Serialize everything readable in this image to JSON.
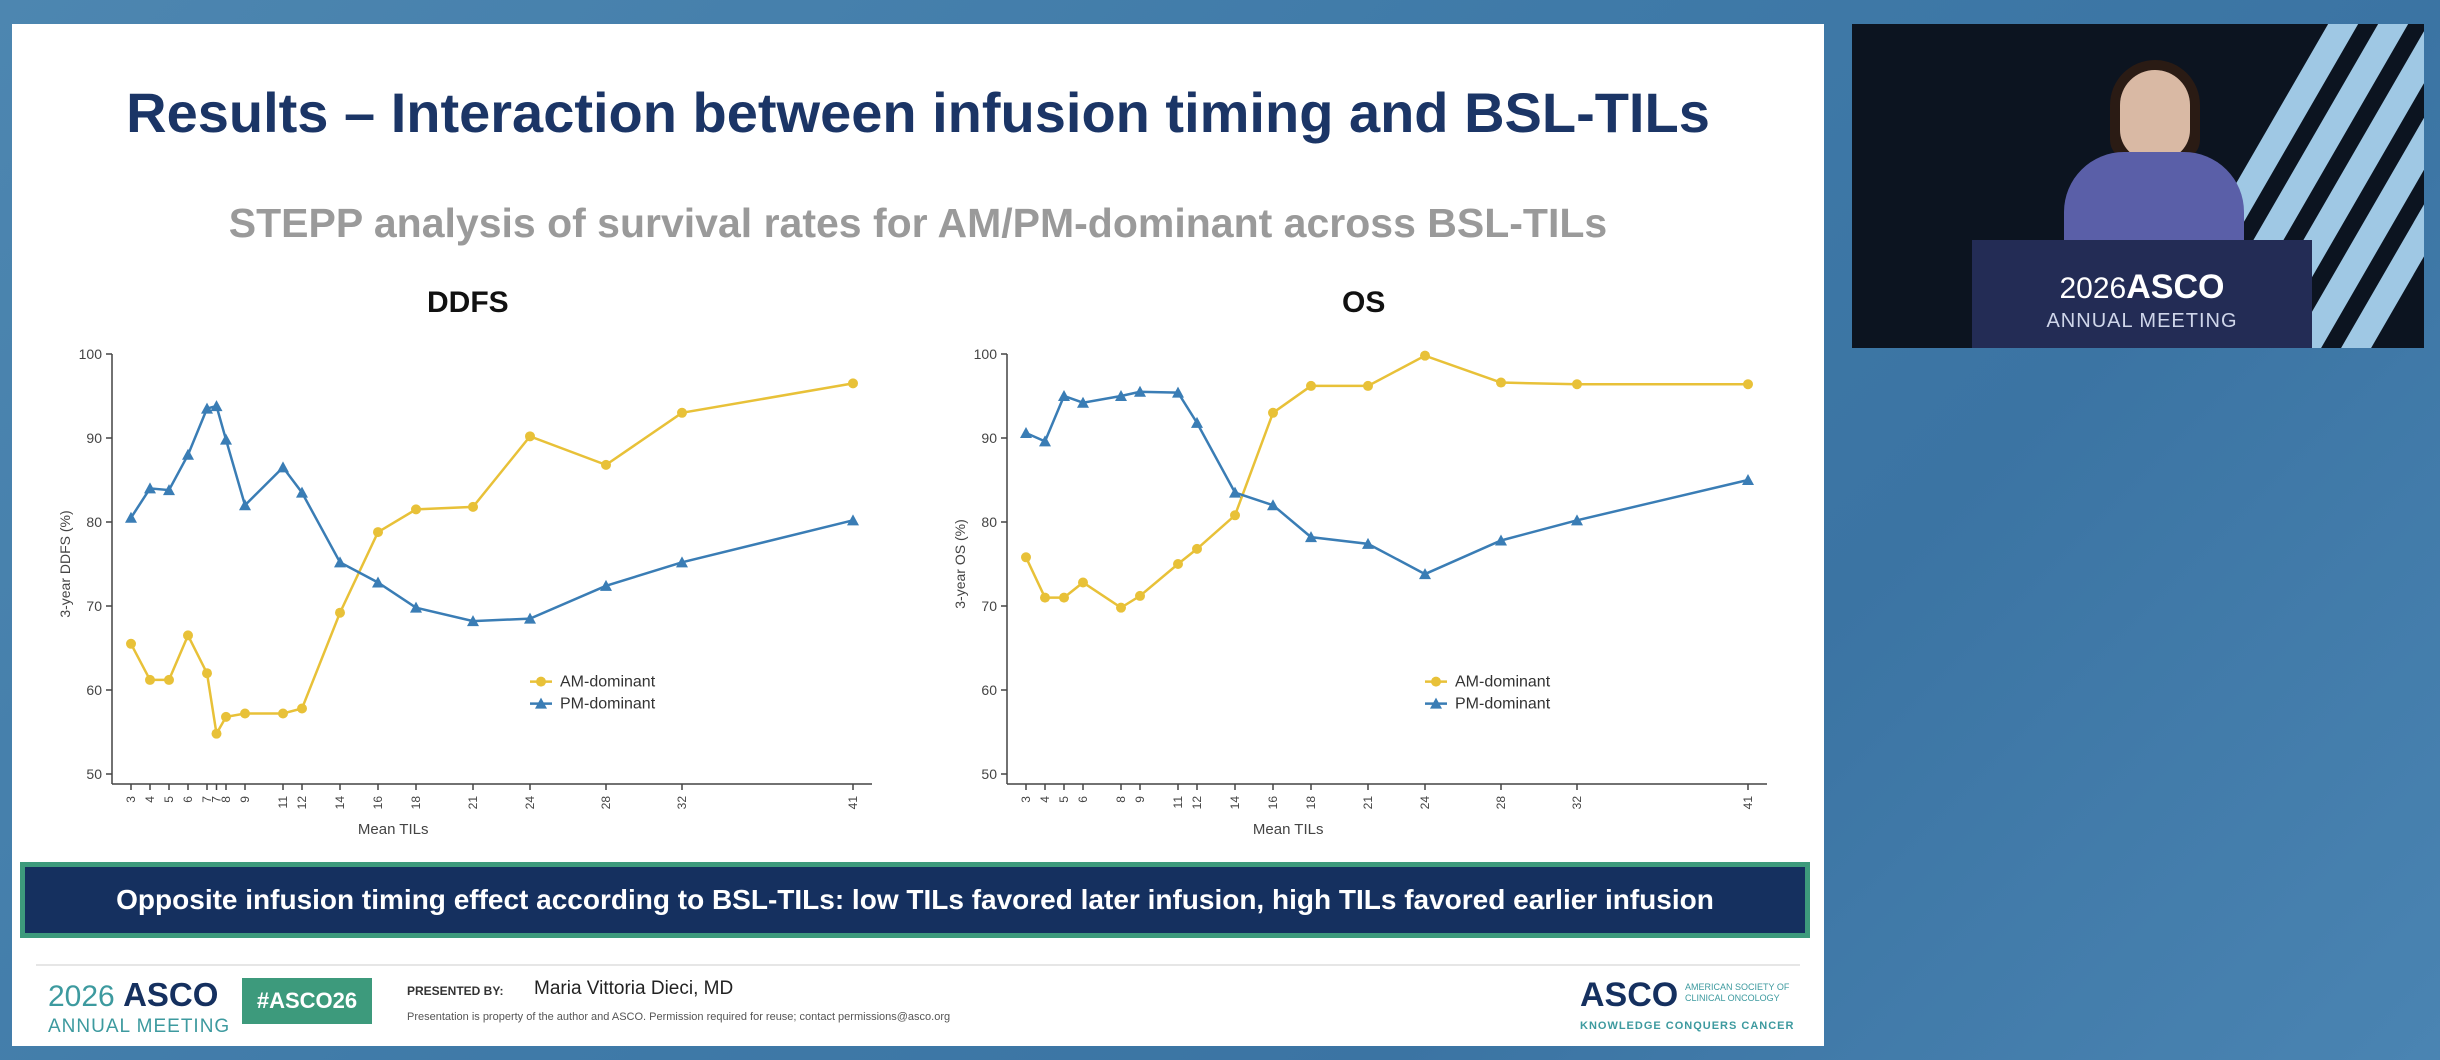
{
  "slide": {
    "title": "Results – Interaction between infusion timing and BSL-TILs",
    "subtitle": "STEPP analysis of survival rates for AM/PM-dominant across BSL-TILs",
    "callout": "Opposite infusion timing effect according to BSL-TILs: low TILs favored later infusion, high TILs favored earlier infusion"
  },
  "footer": {
    "logo_year": "2026",
    "logo_name": "ASCO",
    "logo_sub": "ANNUAL MEETING",
    "hashtag": "#ASCO26",
    "presented_by_label": "PRESENTED BY:",
    "presenter": "Maria Vittoria Dieci, MD",
    "disclaimer": "Presentation is property of the author and ASCO. Permission required for reuse; contact permissions@asco.org",
    "asco_logo": "ASCO",
    "asco_society": "AMERICAN SOCIETY OF CLINICAL ONCOLOGY",
    "asco_tagline": "KNOWLEDGE CONQUERS CANCER"
  },
  "video": {
    "podium_year": "2026",
    "podium_name": "ASCO",
    "podium_sub": "ANNUAL MEETING"
  },
  "colors": {
    "am": "#e8c138",
    "pm": "#3a7db5",
    "title": "#1b3566",
    "accent": "#3d9a7c"
  },
  "chart_data": [
    {
      "type": "line",
      "title": "DDFS",
      "xlabel": "Mean TILs",
      "ylabel": "3-year DDFS (%)",
      "ylim": [
        50,
        100
      ],
      "yticks": [
        50,
        60,
        70,
        80,
        90,
        100
      ],
      "xlim": [
        2,
        42
      ],
      "xticks": [
        3,
        4,
        5,
        6,
        7,
        7.5,
        8,
        9,
        11,
        12,
        14,
        16,
        18,
        21,
        24,
        28,
        32,
        41
      ],
      "xtick_labels": [
        "3",
        "4",
        "5",
        "6",
        "7",
        "7",
        "8",
        "9",
        "11",
        "12",
        "14",
        "16",
        "18",
        "21",
        "24",
        "28",
        "32",
        "41"
      ],
      "legend": "bottom-right",
      "series": [
        {
          "name": "AM-dominant",
          "marker": "circle",
          "x": [
            3,
            4,
            5,
            6,
            7,
            7.5,
            8,
            9,
            11,
            12,
            14,
            16,
            18,
            21,
            24,
            28,
            32,
            41
          ],
          "y": [
            65.5,
            61.2,
            61.2,
            66.5,
            62,
            54.8,
            56.8,
            57.2,
            57.2,
            57.8,
            69.2,
            78.8,
            81.5,
            81.8,
            90.2,
            86.8,
            93,
            96.5
          ]
        },
        {
          "name": "PM-dominant",
          "marker": "triangle",
          "x": [
            3,
            4,
            5,
            6,
            7,
            7.5,
            8,
            9,
            11,
            12,
            14,
            16,
            18,
            21,
            24,
            28,
            32,
            41
          ],
          "y": [
            80.5,
            84,
            83.8,
            88,
            93.5,
            93.8,
            89.8,
            82,
            86.5,
            83.5,
            75.2,
            72.8,
            69.8,
            68.2,
            68.5,
            72.4,
            75.2,
            80.2
          ]
        }
      ]
    },
    {
      "type": "line",
      "title": "OS",
      "xlabel": "Mean TILs",
      "ylabel": "3-year OS (%)",
      "ylim": [
        50,
        100
      ],
      "yticks": [
        50,
        60,
        70,
        80,
        90,
        100
      ],
      "xlim": [
        2,
        42
      ],
      "xticks": [
        3,
        4,
        5,
        6,
        8,
        9,
        11,
        12,
        14,
        16,
        18,
        21,
        24,
        28,
        32,
        41
      ],
      "xtick_labels": [
        "3",
        "4",
        "5",
        "6",
        "8",
        "9",
        "11",
        "12",
        "14",
        "16",
        "18",
        "21",
        "24",
        "28",
        "32",
        "41"
      ],
      "legend": "bottom-right",
      "series": [
        {
          "name": "AM-dominant",
          "marker": "circle",
          "x": [
            3,
            4,
            5,
            6,
            8,
            9,
            11,
            12,
            14,
            16,
            18,
            21,
            24,
            28,
            32,
            41
          ],
          "y": [
            75.8,
            71,
            71,
            72.8,
            69.8,
            71.2,
            75,
            76.8,
            80.8,
            93,
            96.2,
            96.2,
            99.8,
            96.6,
            96.4,
            96.4
          ]
        },
        {
          "name": "PM-dominant",
          "marker": "triangle",
          "x": [
            3,
            4,
            5,
            6,
            8,
            9,
            11,
            12,
            14,
            16,
            18,
            21,
            24,
            28,
            32,
            41
          ],
          "y": [
            90.6,
            89.6,
            95,
            94.2,
            95,
            95.5,
            95.4,
            91.8,
            83.5,
            82,
            78.2,
            77.4,
            73.8,
            77.8,
            80.2,
            85
          ]
        }
      ]
    }
  ]
}
